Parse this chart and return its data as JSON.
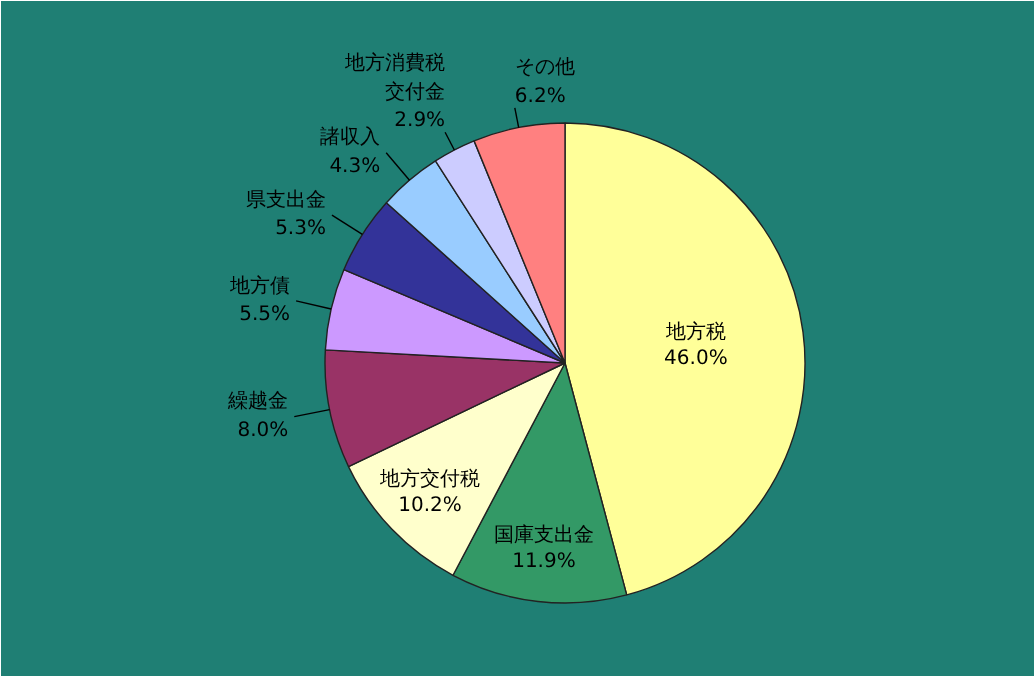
{
  "chart_data": {
    "type": "pie",
    "categories": [
      "地方税",
      "国庫支出金",
      "地方交付税",
      "繰越金",
      "地方債",
      "県支出金",
      "諸収入",
      "地方消費税交付金",
      "その他"
    ],
    "values": [
      46.0,
      11.9,
      10.2,
      8.0,
      5.5,
      5.3,
      4.3,
      2.9,
      6.2
    ],
    "value_labels": [
      "46.0%",
      "11.9%",
      "10.2%",
      "8.0%",
      "5.5%",
      "5.3%",
      "4.3%",
      "2.9%",
      "6.2%"
    ],
    "colors": [
      "#ffff99",
      "#339966",
      "#ffffcc",
      "#993366",
      "#cc99ff",
      "#333399",
      "#99ccff",
      "#ccccff",
      "#ff8080"
    ]
  }
}
